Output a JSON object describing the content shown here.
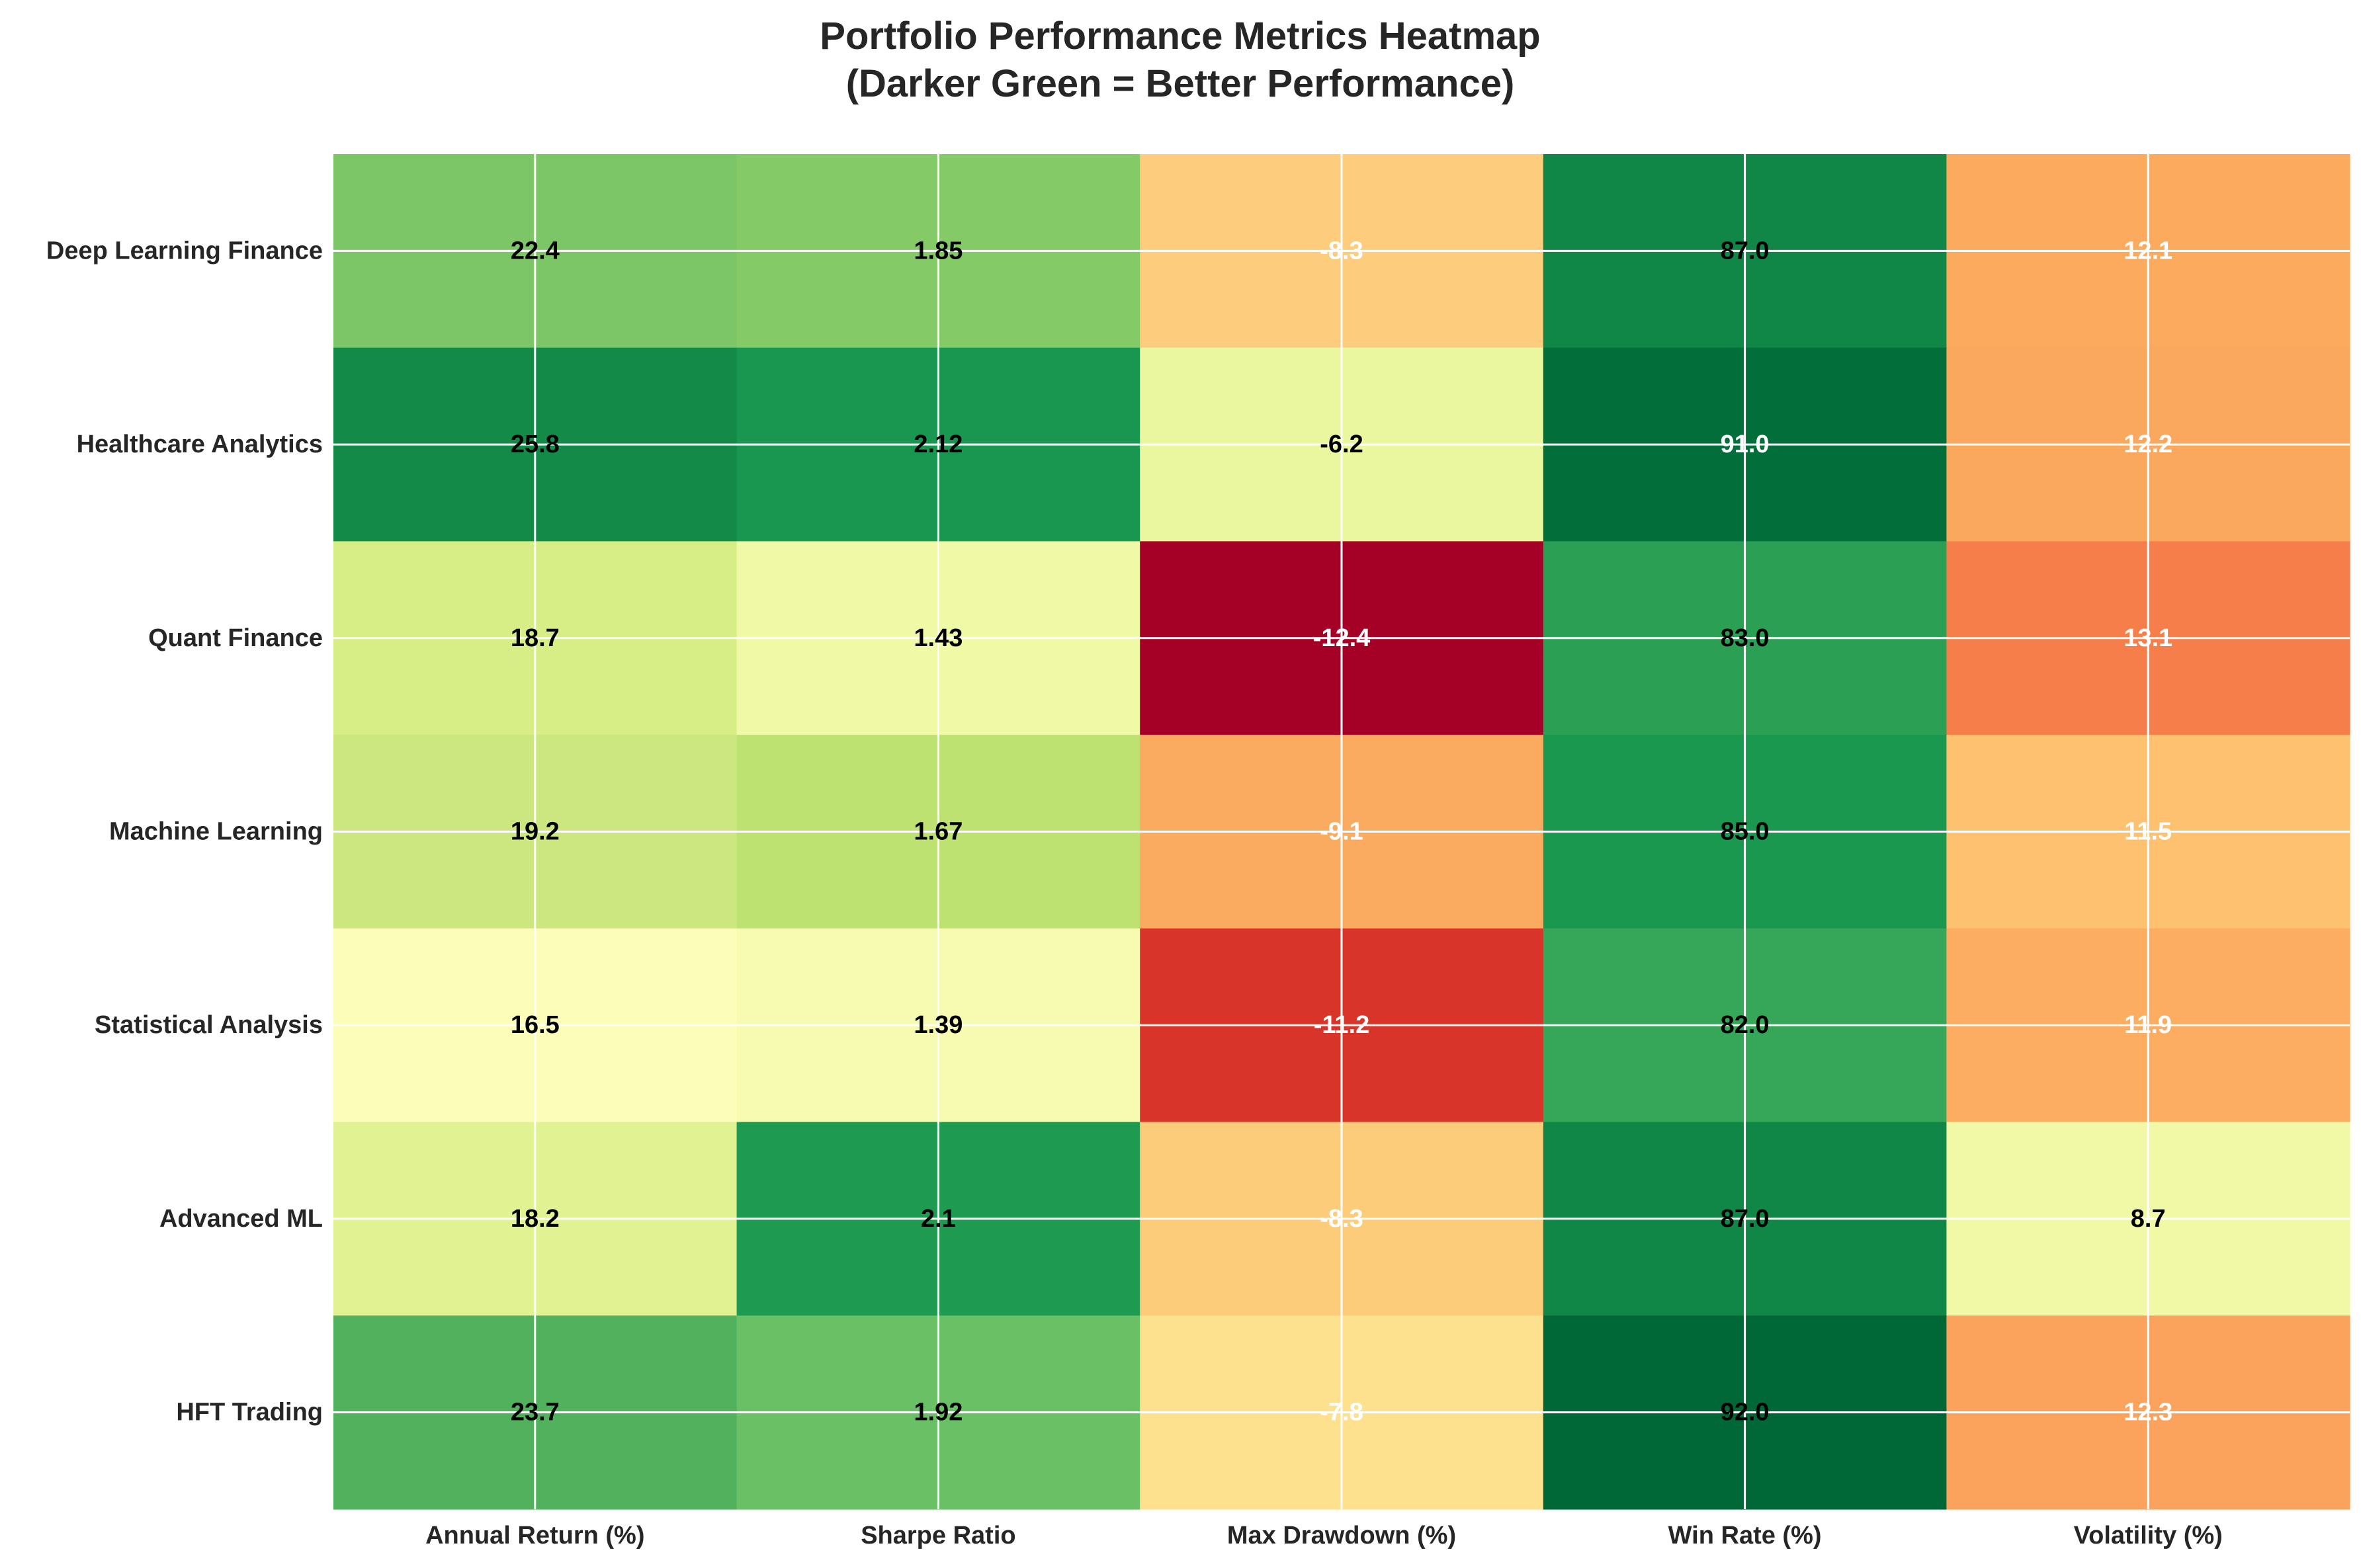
{
  "chart_data": {
    "type": "heatmap",
    "title": "Portfolio Performance Metrics Heatmap",
    "subtitle": "(Darker Green = Better Performance)",
    "xlabel": "",
    "ylabel": "",
    "grid": true,
    "colormap": "RdYlGn",
    "columns": [
      "Annual Return (%)",
      "Sharpe Ratio",
      "Max Drawdown (%)",
      "Win Rate (%)",
      "Volatility (%)"
    ],
    "rows": [
      "Deep Learning Finance",
      "Healthcare Analytics",
      "Quant Finance",
      "Machine Learning",
      "Statistical Analysis",
      "Advanced ML",
      "HFT Trading"
    ],
    "labels": [
      [
        "22.4",
        "1.85",
        "-8.3",
        "87.0",
        "12.1"
      ],
      [
        "25.8",
        "2.12",
        "-6.2",
        "91.0",
        "12.2"
      ],
      [
        "18.7",
        "1.43",
        "-12.4",
        "83.0",
        "13.1"
      ],
      [
        "19.2",
        "1.67",
        "-9.1",
        "85.0",
        "11.5"
      ],
      [
        "16.5",
        "1.39",
        "-11.2",
        "82.0",
        "11.9"
      ],
      [
        "18.2",
        "2.1",
        "-8.3",
        "87.0",
        "8.7"
      ],
      [
        "23.7",
        "1.92",
        "-7.8",
        "92.0",
        "12.3"
      ]
    ],
    "cell_colors": [
      [
        "#7dc668",
        "#84ca66",
        "#fdcd7d",
        "#108647",
        "#fbaa5e"
      ],
      [
        "#138a48",
        "#19964f",
        "#eaf79e",
        "#026e3a",
        "#faa85d"
      ],
      [
        "#d7ed85",
        "#f0f9a6",
        "#a50026",
        "#2b9f54",
        "#f57e4a"
      ],
      [
        "#cce780",
        "#bde271",
        "#fbab5f",
        "#1a9850",
        "#fdc170"
      ],
      [
        "#fbfdb8",
        "#f7fbb2",
        "#d93429",
        "#36a758",
        "#fcad61"
      ],
      [
        "#e1f293",
        "#1e9a51",
        "#fdcc7b",
        "#108647",
        "#f1f9a7"
      ],
      [
        "#51b15c",
        "#6ac064",
        "#fee18f",
        "#006837",
        "#fba25c"
      ]
    ],
    "text_colors": [
      [
        "#000000",
        "#000000",
        "#ffffff",
        "#000000",
        "#ffffff"
      ],
      [
        "#000000",
        "#000000",
        "#000000",
        "#ffffff",
        "#ffffff"
      ],
      [
        "#000000",
        "#000000",
        "#ffffff",
        "#000000",
        "#ffffff"
      ],
      [
        "#000000",
        "#000000",
        "#ffffff",
        "#000000",
        "#ffffff"
      ],
      [
        "#000000",
        "#000000",
        "#ffffff",
        "#000000",
        "#ffffff"
      ],
      [
        "#000000",
        "#000000",
        "#ffffff",
        "#000000",
        "#000000"
      ],
      [
        "#000000",
        "#000000",
        "#ffffff",
        "#000000",
        "#ffffff"
      ]
    ]
  }
}
